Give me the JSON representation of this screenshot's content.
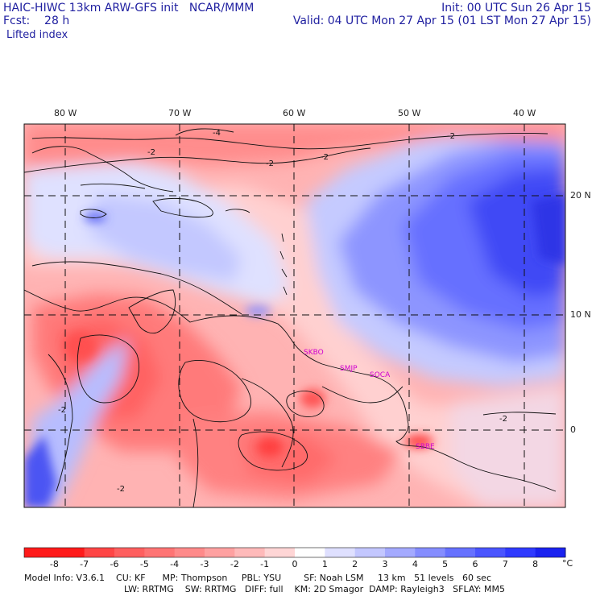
{
  "header": {
    "line1_left": "HAIC-HIWC 13km ARW-GFS init   NCAR/MMM",
    "line2_left": "Fcst:    28 h",
    "line1_right": "Init: 00 UTC Sun 26 Apr 15",
    "line2_right": "Valid: 04 UTC Mon 27 Apr 15 (01 LST Mon 27 Apr 15)",
    "field_name": "Lifted index"
  },
  "axes": {
    "longitudes": [
      "80 W",
      "70 W",
      "60 W",
      "50 W",
      "40 W"
    ],
    "latitudes": [
      "20 N",
      "10 N",
      "0"
    ]
  },
  "stations": [
    "SKBO",
    "SMJP",
    "SOCA",
    "SBBE"
  ],
  "contour_labels": [
    "-4",
    "-2",
    "-2",
    "-2",
    "-2",
    "-2",
    "-2",
    "-2"
  ],
  "colorbar": {
    "ticks": [
      "-8",
      "-7",
      "-6",
      "-5",
      "-4",
      "-3",
      "-2",
      "-1",
      "0",
      "1",
      "2",
      "3",
      "4",
      "5",
      "6",
      "7",
      "8"
    ],
    "unit": "°C",
    "colors": [
      "#ff1a1a",
      "#ff4545",
      "#ff5f5f",
      "#ff7474",
      "#ff8a8a",
      "#ffa1a1",
      "#ffbaba",
      "#ffd6d6",
      "#ffffff",
      "#dfe0ff",
      "#c3c7ff",
      "#a4aaff",
      "#858dff",
      "#6671ff",
      "#4a55ff",
      "#2f3aff",
      "#1a22f0"
    ]
  },
  "footer": {
    "line1": "Model Info: V3.6.1    CU: KF      MP: Thompson     PBL: YSU        SF: Noah LSM     13 km   51 levels   60 sec",
    "line2": "LW: RRTMG    SW: RRTMG   DIFF: full    KM: 2D Smagor  DAMP: Rayleigh3   SFLAY: MM5"
  }
}
